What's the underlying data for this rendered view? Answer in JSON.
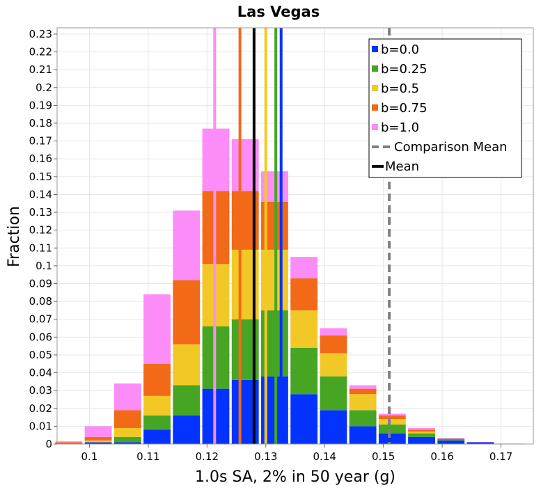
{
  "chart_data": {
    "type": "bar",
    "stacked": true,
    "title": "Las Vegas",
    "xlabel": "1.0s SA, 2% in 50 year (g)",
    "ylabel": "Fraction",
    "xlim": [
      0.0945,
      0.1755
    ],
    "ylim": [
      0,
      0.2335
    ],
    "grid": true,
    "legend_position": "top-right",
    "x_ticks": [
      {
        "value": 0.1,
        "label": "0.1"
      },
      {
        "value": 0.11,
        "label": "0.11"
      },
      {
        "value": 0.12,
        "label": "0.12"
      },
      {
        "value": 0.13,
        "label": "0.13"
      },
      {
        "value": 0.14,
        "label": "0.14"
      },
      {
        "value": 0.15,
        "label": "0.15"
      },
      {
        "value": 0.16,
        "label": "0.16"
      },
      {
        "value": 0.17,
        "label": "0.17"
      }
    ],
    "y_ticks": [
      {
        "value": 0,
        "label": "0"
      },
      {
        "value": 0.01,
        "label": "0.01"
      },
      {
        "value": 0.02,
        "label": "0.02"
      },
      {
        "value": 0.03,
        "label": "0.03"
      },
      {
        "value": 0.04,
        "label": "0.04"
      },
      {
        "value": 0.05,
        "label": "0.05"
      },
      {
        "value": 0.06,
        "label": "0.06"
      },
      {
        "value": 0.07,
        "label": "0.07"
      },
      {
        "value": 0.08,
        "label": "0.08"
      },
      {
        "value": 0.09,
        "label": "0.09"
      },
      {
        "value": 0.1,
        "label": "0.1"
      },
      {
        "value": 0.11,
        "label": "0.11"
      },
      {
        "value": 0.12,
        "label": "0.12"
      },
      {
        "value": 0.13,
        "label": "0.13"
      },
      {
        "value": 0.14,
        "label": "0.14"
      },
      {
        "value": 0.15,
        "label": "0.15"
      },
      {
        "value": 0.16,
        "label": "0.16"
      },
      {
        "value": 0.17,
        "label": "0.17"
      },
      {
        "value": 0.18,
        "label": "0.18"
      },
      {
        "value": 0.19,
        "label": "0.19"
      },
      {
        "value": 0.2,
        "label": "0.2"
      },
      {
        "value": 0.21,
        "label": "0.21"
      },
      {
        "value": 0.22,
        "label": "0.22"
      },
      {
        "value": 0.23,
        "label": "0.23"
      }
    ],
    "bin_centers": [
      0.0965,
      0.1015,
      0.1065,
      0.1115,
      0.1165,
      0.1215,
      0.1265,
      0.1315,
      0.1365,
      0.1415,
      0.1465,
      0.1515,
      0.1565,
      0.1615,
      0.1665,
      0.1715
    ],
    "bin_width": 0.0046,
    "series": [
      {
        "name": "b=0.0",
        "color": "#0433ff",
        "cumulative": [
          0.0,
          0.001,
          0.001,
          0.008,
          0.016,
          0.031,
          0.036,
          0.038,
          0.028,
          0.019,
          0.01,
          0.006,
          0.004,
          0.002,
          0.001,
          0.0
        ]
      },
      {
        "name": "b=0.25",
        "color": "#47a524",
        "cumulative": [
          0.0,
          0.001,
          0.004,
          0.016,
          0.033,
          0.066,
          0.07,
          0.075,
          0.054,
          0.038,
          0.019,
          0.011,
          0.006,
          0.003,
          0.001,
          0.0
        ]
      },
      {
        "name": "b=0.5",
        "color": "#f2c826",
        "cumulative": [
          0.0,
          0.002,
          0.009,
          0.027,
          0.056,
          0.101,
          0.109,
          0.109,
          0.075,
          0.051,
          0.028,
          0.014,
          0.007,
          0.003,
          0.001,
          0.0
        ]
      },
      {
        "name": "b=0.75",
        "color": "#f26918",
        "cumulative": [
          0.001,
          0.004,
          0.019,
          0.045,
          0.092,
          0.142,
          0.142,
          0.136,
          0.093,
          0.061,
          0.031,
          0.016,
          0.008,
          0.003,
          0.001,
          0.0
        ]
      },
      {
        "name": "b=1.0",
        "color": "#fc8cf7",
        "cumulative": [
          0.0015,
          0.01,
          0.034,
          0.084,
          0.131,
          0.177,
          0.171,
          0.153,
          0.105,
          0.065,
          0.033,
          0.017,
          0.009,
          0.0035,
          0.0012,
          0.0003
        ]
      }
    ],
    "mean_lines": [
      {
        "series": "b=0.0",
        "x": 0.1326,
        "color": "#0433ff"
      },
      {
        "series": "b=0.25",
        "x": 0.1317,
        "color": "#47a524"
      },
      {
        "series": "b=0.5",
        "x": 0.13,
        "color": "#f2c826"
      },
      {
        "series": "b=0.75",
        "x": 0.1256,
        "color": "#f26918"
      },
      {
        "series": "b=1.0",
        "x": 0.1213,
        "color": "#fc8cf7"
      }
    ],
    "overall_mean": {
      "name": "Mean",
      "x": 0.128,
      "color": "#000000"
    },
    "comparison_mean": {
      "name": "Comparison Mean",
      "x": 0.151,
      "color": "#808080"
    },
    "legend": [
      {
        "label": "b=0.0",
        "kind": "box",
        "color": "#0433ff"
      },
      {
        "label": "b=0.25",
        "kind": "box",
        "color": "#47a524"
      },
      {
        "label": "b=0.5",
        "kind": "box",
        "color": "#f2c826"
      },
      {
        "label": "b=0.75",
        "kind": "box",
        "color": "#f26918"
      },
      {
        "label": "b=1.0",
        "kind": "box",
        "color": "#fc8cf7"
      },
      {
        "label": "Comparison Mean",
        "kind": "dashed-line",
        "color": "#808080"
      },
      {
        "label": "Mean",
        "kind": "line",
        "color": "#000000"
      }
    ]
  }
}
